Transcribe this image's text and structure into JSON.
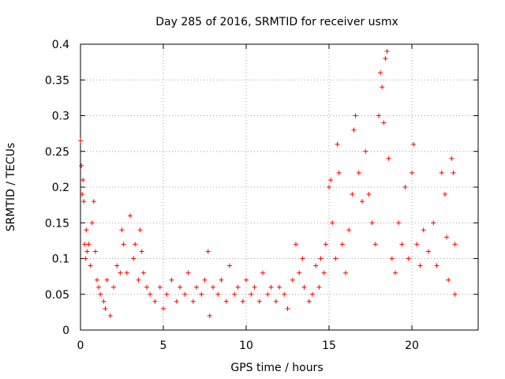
{
  "chart_data": {
    "type": "scatter",
    "title": "Day 285 of 2016, SRMTID for receiver usmx",
    "xlabel": "GPS time / hours",
    "ylabel": "SRMTID / TECUs",
    "xlim": [
      0,
      24
    ],
    "ylim": [
      0,
      0.4
    ],
    "xticks": [
      0,
      5,
      10,
      15,
      20
    ],
    "xtick_labels": [
      "0",
      "5",
      "10",
      "15",
      "20"
    ],
    "yticks": [
      0,
      0.05,
      0.1,
      0.15,
      0.2,
      0.25,
      0.3,
      0.35,
      0.4
    ],
    "ytick_labels": [
      "0",
      "0.05",
      "0.1",
      "0.15",
      "0.2",
      "0.25",
      "0.3",
      "0.35",
      "0.4"
    ],
    "grid": true,
    "marker": "plus",
    "marker_color": "#ff0000",
    "series": [
      {
        "name": "SRMTID",
        "points": [
          [
            0.0,
            0.265
          ],
          [
            0.05,
            0.23
          ],
          [
            0.1,
            0.19
          ],
          [
            0.15,
            0.21
          ],
          [
            0.2,
            0.18
          ],
          [
            0.25,
            0.12
          ],
          [
            0.3,
            0.1
          ],
          [
            0.35,
            0.14
          ],
          [
            0.4,
            0.11
          ],
          [
            0.5,
            0.12
          ],
          [
            0.6,
            0.09
          ],
          [
            0.7,
            0.15
          ],
          [
            0.8,
            0.18
          ],
          [
            0.9,
            0.11
          ],
          [
            1.0,
            0.07
          ],
          [
            1.1,
            0.06
          ],
          [
            1.2,
            0.05
          ],
          [
            1.4,
            0.04
          ],
          [
            1.5,
            0.03
          ],
          [
            1.6,
            0.07
          ],
          [
            1.8,
            0.02
          ],
          [
            2.0,
            0.06
          ],
          [
            2.2,
            0.09
          ],
          [
            2.4,
            0.08
          ],
          [
            2.5,
            0.14
          ],
          [
            2.6,
            0.12
          ],
          [
            2.8,
            0.08
          ],
          [
            3.0,
            0.16
          ],
          [
            3.2,
            0.1
          ],
          [
            3.3,
            0.12
          ],
          [
            3.5,
            0.07
          ],
          [
            3.6,
            0.14
          ],
          [
            3.7,
            0.11
          ],
          [
            3.8,
            0.08
          ],
          [
            4.0,
            0.06
          ],
          [
            4.2,
            0.05
          ],
          [
            4.5,
            0.04
          ],
          [
            4.8,
            0.06
          ],
          [
            5.0,
            0.03
          ],
          [
            5.2,
            0.05
          ],
          [
            5.5,
            0.07
          ],
          [
            5.8,
            0.04
          ],
          [
            6.0,
            0.06
          ],
          [
            6.3,
            0.05
          ],
          [
            6.5,
            0.08
          ],
          [
            6.8,
            0.04
          ],
          [
            7.0,
            0.06
          ],
          [
            7.3,
            0.05
          ],
          [
            7.5,
            0.07
          ],
          [
            7.7,
            0.11
          ],
          [
            7.8,
            0.02
          ],
          [
            8.0,
            0.06
          ],
          [
            8.3,
            0.05
          ],
          [
            8.5,
            0.07
          ],
          [
            8.8,
            0.04
          ],
          [
            9.0,
            0.09
          ],
          [
            9.3,
            0.05
          ],
          [
            9.5,
            0.06
          ],
          [
            9.8,
            0.04
          ],
          [
            10.0,
            0.07
          ],
          [
            10.3,
            0.05
          ],
          [
            10.5,
            0.06
          ],
          [
            10.8,
            0.04
          ],
          [
            11.0,
            0.08
          ],
          [
            11.3,
            0.05
          ],
          [
            11.5,
            0.06
          ],
          [
            11.8,
            0.04
          ],
          [
            12.0,
            0.06
          ],
          [
            12.3,
            0.05
          ],
          [
            12.5,
            0.03
          ],
          [
            12.8,
            0.07
          ],
          [
            13.0,
            0.12
          ],
          [
            13.2,
            0.08
          ],
          [
            13.4,
            0.1
          ],
          [
            13.5,
            0.06
          ],
          [
            13.8,
            0.04
          ],
          [
            14.0,
            0.05
          ],
          [
            14.2,
            0.09
          ],
          [
            14.4,
            0.06
          ],
          [
            14.5,
            0.1
          ],
          [
            14.7,
            0.08
          ],
          [
            14.8,
            0.12
          ],
          [
            15.0,
            0.2
          ],
          [
            15.1,
            0.21
          ],
          [
            15.2,
            0.15
          ],
          [
            15.4,
            0.1
          ],
          [
            15.5,
            0.26
          ],
          [
            15.6,
            0.22
          ],
          [
            15.8,
            0.12
          ],
          [
            16.0,
            0.08
          ],
          [
            16.2,
            0.14
          ],
          [
            16.4,
            0.19
          ],
          [
            16.5,
            0.28
          ],
          [
            16.6,
            0.3
          ],
          [
            16.8,
            0.22
          ],
          [
            17.0,
            0.18
          ],
          [
            17.2,
            0.25
          ],
          [
            17.4,
            0.19
          ],
          [
            17.6,
            0.15
          ],
          [
            17.8,
            0.12
          ],
          [
            18.0,
            0.3
          ],
          [
            18.1,
            0.36
          ],
          [
            18.2,
            0.34
          ],
          [
            18.3,
            0.29
          ],
          [
            18.4,
            0.38
          ],
          [
            18.5,
            0.39
          ],
          [
            18.6,
            0.24
          ],
          [
            18.8,
            0.1
          ],
          [
            19.0,
            0.08
          ],
          [
            19.2,
            0.15
          ],
          [
            19.4,
            0.12
          ],
          [
            19.6,
            0.2
          ],
          [
            19.8,
            0.1
          ],
          [
            20.0,
            0.22
          ],
          [
            20.1,
            0.26
          ],
          [
            20.3,
            0.12
          ],
          [
            20.5,
            0.09
          ],
          [
            20.7,
            0.14
          ],
          [
            21.0,
            0.11
          ],
          [
            21.3,
            0.15
          ],
          [
            21.5,
            0.09
          ],
          [
            21.8,
            0.22
          ],
          [
            22.0,
            0.19
          ],
          [
            22.1,
            0.13
          ],
          [
            22.2,
            0.07
          ],
          [
            22.4,
            0.24
          ],
          [
            22.5,
            0.22
          ],
          [
            22.6,
            0.12
          ],
          [
            22.6,
            0.05
          ]
        ]
      }
    ]
  }
}
